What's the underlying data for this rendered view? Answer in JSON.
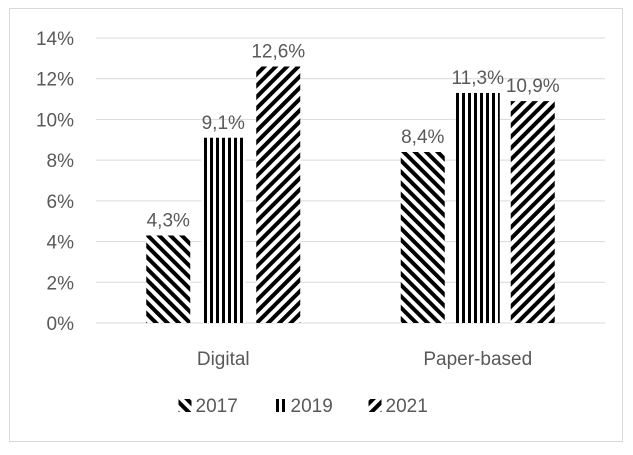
{
  "chart_data": {
    "type": "bar",
    "categories": [
      "Digital",
      "Paper-based"
    ],
    "series": [
      {
        "name": "2017",
        "values": [
          4.3,
          8.4
        ],
        "pattern": "diagonal-down",
        "labels": [
          "4,3%",
          "8,4%"
        ]
      },
      {
        "name": "2019",
        "values": [
          9.1,
          11.3
        ],
        "pattern": "vertical",
        "labels": [
          "9,1%",
          "11,3%"
        ]
      },
      {
        "name": "2021",
        "values": [
          12.6,
          10.9
        ],
        "pattern": "diagonal-up",
        "labels": [
          "12,6%",
          "10,9%"
        ]
      }
    ],
    "ylim": [
      0,
      14
    ],
    "yticks": [
      0,
      2,
      4,
      6,
      8,
      10,
      12,
      14
    ],
    "ytick_labels": [
      "0%",
      "2%",
      "4%",
      "6%",
      "8%",
      "10%",
      "12%",
      "14%"
    ],
    "title": "",
    "xlabel": "",
    "ylabel": "",
    "grid": true,
    "legend_position": "bottom",
    "colors": {
      "bar": "#000000",
      "grid": "#d9d9d9",
      "text": "#595959",
      "background": "#ffffff"
    }
  }
}
